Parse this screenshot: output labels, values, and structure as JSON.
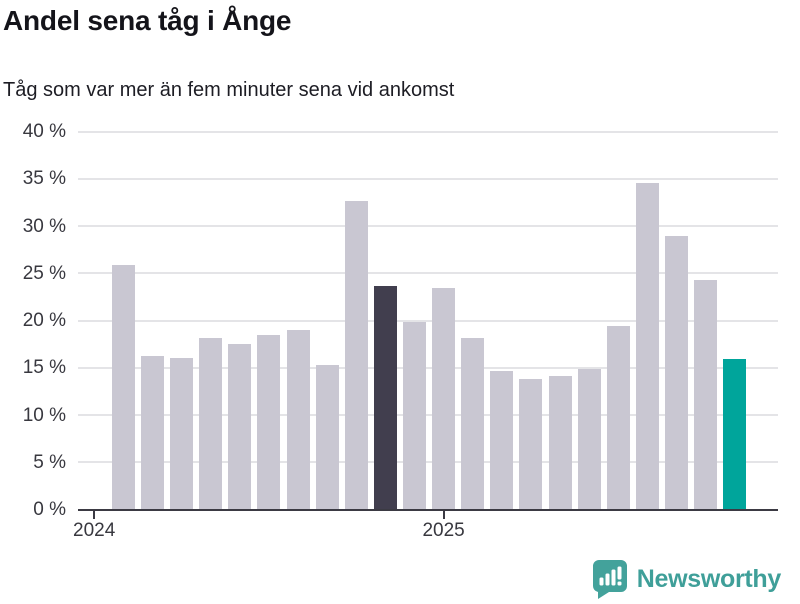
{
  "chart_data": {
    "type": "bar",
    "title": "Andel sena tåg i Ånge",
    "subtitle": "Tåg som var mer än fem minuter sena vid ankomst",
    "x": [
      "2024-01",
      "2024-02",
      "2024-03",
      "2024-04",
      "2024-05",
      "2024-06",
      "2024-07",
      "2024-08",
      "2024-09",
      "2024-10",
      "2024-11",
      "2024-12",
      "2025-01",
      "2025-02",
      "2025-03",
      "2025-04",
      "2025-05",
      "2025-06",
      "2025-07",
      "2025-08",
      "2025-09",
      "2025-10"
    ],
    "values": [
      25.9,
      16.2,
      16.0,
      18.1,
      17.5,
      18.5,
      19.0,
      15.3,
      32.6,
      23.6,
      19.8,
      23.4,
      18.2,
      14.7,
      13.8,
      14.1,
      14.9,
      19.4,
      34.5,
      28.9,
      24.3,
      15.9
    ],
    "unit": "%",
    "ylim": [
      0,
      40
    ],
    "y_ticks": [
      0,
      5,
      10,
      15,
      20,
      25,
      30,
      35,
      40
    ],
    "y_tick_labels": [
      "0 %",
      "5 %",
      "10 %",
      "15 %",
      "20 %",
      "25 %",
      "30 %",
      "35 %",
      "40 %"
    ],
    "x_tick_labels": [
      "2024",
      "2025"
    ],
    "grid": true,
    "legend": "none",
    "highlights": {
      "dark_index": 9,
      "teal_index": 21
    },
    "colors": {
      "bar_default": "#c9c7d2",
      "bar_dark": "#413e4e",
      "bar_teal": "#00a59b",
      "gridline": "#e4e4e7",
      "axis": "#3b3a43",
      "title_text": "#14141a",
      "tick_text": "#38383f"
    }
  },
  "branding": {
    "logo_text": "Newsworthy",
    "logo_icon": "newsworthy-speech-bubble-chart-icon",
    "logo_color": "#43a29b"
  }
}
